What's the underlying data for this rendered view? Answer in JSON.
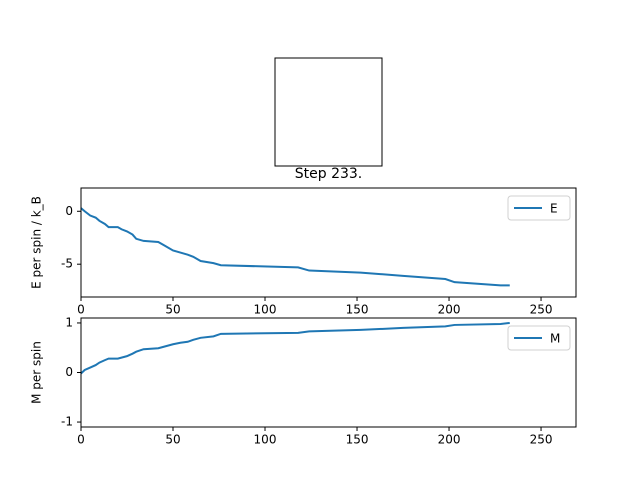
{
  "chart_data": [
    {
      "type": "line",
      "title": "Step 233.",
      "y_label": "E per spin / k_B",
      "legend": "upper right",
      "xlim": [
        0,
        269
      ],
      "xticks": [
        0,
        50,
        100,
        150,
        200,
        250
      ],
      "ylim": [
        -8.1,
        2.2
      ],
      "yticks": [
        -5,
        0
      ],
      "x": [
        0,
        2,
        5,
        8,
        10,
        13,
        15,
        20,
        22,
        25,
        28,
        30,
        34,
        42,
        45,
        50,
        54,
        58,
        61,
        65,
        72,
        76,
        118,
        124,
        152,
        175,
        198,
        203,
        228,
        233
      ],
      "series": [
        {
          "name": "E",
          "color": "#1f77b4",
          "values": [
            0.3,
            0,
            -0.4,
            -0.6,
            -0.9,
            -1.2,
            -1.5,
            -1.5,
            -1.7,
            -1.9,
            -2.2,
            -2.6,
            -2.8,
            -2.9,
            -3.2,
            -3.7,
            -3.9,
            -4.1,
            -4.3,
            -4.7,
            -4.9,
            -5.1,
            -5.3,
            -5.6,
            -5.8,
            -6.1,
            -6.4,
            -6.7,
            -7.0,
            -7.0
          ]
        }
      ]
    },
    {
      "type": "line",
      "y_label": "M per spin",
      "legend": "upper right",
      "xlim": [
        0,
        269
      ],
      "xticks": [
        0,
        50,
        100,
        150,
        200,
        250
      ],
      "ylim": [
        -1.1,
        1.1
      ],
      "yticks": [
        -1,
        0,
        1
      ],
      "x": [
        0,
        2,
        5,
        8,
        10,
        13,
        15,
        20,
        22,
        25,
        28,
        30,
        34,
        42,
        45,
        50,
        54,
        58,
        61,
        65,
        72,
        76,
        118,
        124,
        152,
        175,
        198,
        203,
        228,
        233
      ],
      "series": [
        {
          "name": "M",
          "color": "#1f77b4",
          "values": [
            -0.02,
            0.05,
            0.1,
            0.15,
            0.2,
            0.25,
            0.28,
            0.28,
            0.3,
            0.33,
            0.38,
            0.42,
            0.47,
            0.49,
            0.52,
            0.57,
            0.6,
            0.62,
            0.66,
            0.7,
            0.73,
            0.78,
            0.8,
            0.83,
            0.86,
            0.9,
            0.93,
            0.96,
            0.98,
            1.0
          ]
        }
      ]
    }
  ]
}
